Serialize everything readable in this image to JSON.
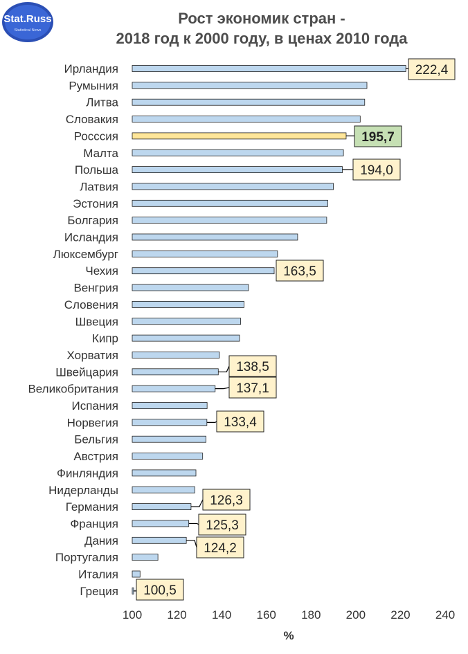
{
  "logo": {
    "line1": "Stat.Russ",
    "line2": "Statistical News"
  },
  "title": {
    "line1": "Рост экономик стран -",
    "line2": "2018 год к 2000 году, в ценах 2010 года"
  },
  "colors": {
    "bar": "#bdd7ee",
    "bar_highlight": "#ffe699",
    "bar_stroke": "#1f1f1f",
    "callout_bg": "#fff2cc",
    "callout_bg_highlight": "#c6e0b4"
  },
  "chart_data": {
    "type": "bar",
    "orientation": "horizontal",
    "xlabel": "%",
    "xlim": [
      100,
      240
    ],
    "xticks": [
      100,
      120,
      140,
      160,
      180,
      200,
      220,
      240
    ],
    "grid": false,
    "highlight": "Росссия",
    "categories": [
      "Ирландия",
      "Румыния",
      "Литва",
      "Словакия",
      "Росссия",
      "Малта",
      "Польша",
      "Латвия",
      "Эстония",
      "Болгария",
      "Исландия",
      "Люксембург",
      "Чехия",
      "Венгрия",
      "Словения",
      "Швеция",
      "Кипр",
      "Хорватия",
      "Швейцария",
      "Великобритания",
      "Испания",
      "Норвегия",
      "Бельгия",
      "Австрия",
      "Финляндия",
      "Нидерланды",
      "Германия",
      "Франция",
      "Дания",
      "Португалия",
      "Италия",
      "Греция"
    ],
    "values": [
      222.4,
      205,
      204,
      202,
      195.7,
      194.5,
      194.0,
      190,
      187.5,
      187,
      174,
      165,
      163.5,
      152,
      150,
      148.5,
      148,
      139,
      138.5,
      137.1,
      133.5,
      133.4,
      133,
      131.5,
      128.5,
      128,
      126.3,
      125.3,
      124.2,
      111.5,
      103.5,
      100.5
    ],
    "data_labels": [
      {
        "category": "Ирландия",
        "text": "222,4"
      },
      {
        "category": "Росссия",
        "text": "195,7"
      },
      {
        "category": "Польша",
        "text": "194,0"
      },
      {
        "category": "Чехия",
        "text": "163,5"
      },
      {
        "category": "Швейцария",
        "text": "138,5"
      },
      {
        "category": "Великобритания",
        "text": "137,1"
      },
      {
        "category": "Норвегия",
        "text": "133,4"
      },
      {
        "category": "Германия",
        "text": "126,3"
      },
      {
        "category": "Франция",
        "text": "125,3"
      },
      {
        "category": "Дания",
        "text": "124,2"
      },
      {
        "category": "Греция",
        "text": "100,5"
      }
    ]
  }
}
